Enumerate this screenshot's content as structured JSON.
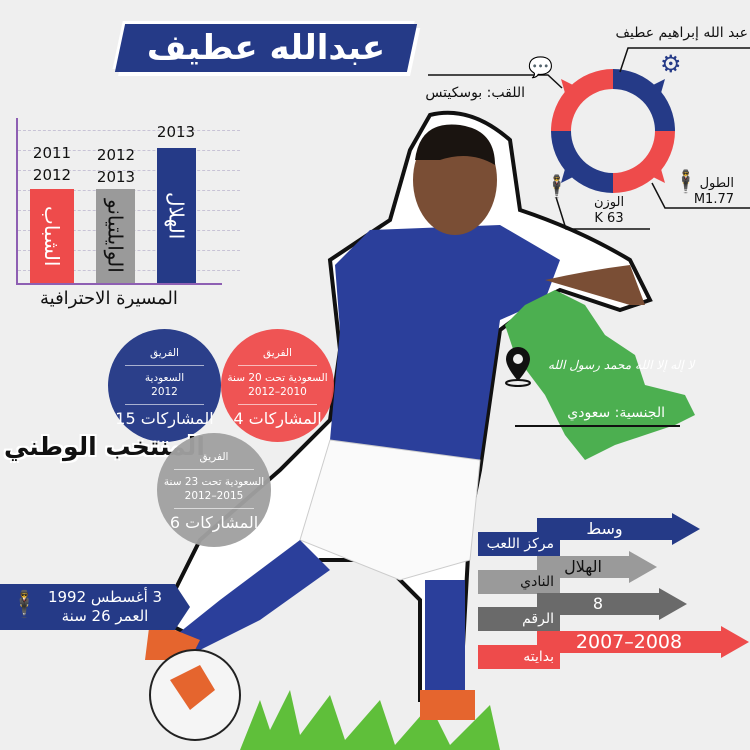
{
  "title": "عبدالله عطيف",
  "career": {
    "caption": "المسيرة الاحترافية",
    "clubs": [
      {
        "name": "الشباب",
        "years": [
          "2011",
          "2012"
        ],
        "color": "#ee4b4b"
      },
      {
        "name": "الوايلتيانو",
        "years": [
          "2012",
          "2013"
        ],
        "color": "#9a9a9a"
      },
      {
        "name": "الهلال",
        "years": [
          "2013"
        ],
        "color": "#253a87"
      }
    ]
  },
  "profile": {
    "full_name": "عبد الله إبراهيم عطيف",
    "nickname": "اللقب: بوسكيتس",
    "height_label": "الطول",
    "height_value": "M1.77",
    "weight_label": "الوزن",
    "weight_value": "K 63"
  },
  "nationality": {
    "label": "الجنسية: سعودي",
    "flag_text": "لا إله إلا الله محمد رسول الله"
  },
  "national_team": {
    "title": "المنتخب الوطني",
    "teams": [
      {
        "label": "الفريق",
        "team": "السعودية",
        "years": "2012",
        "apps": "المشاركات 15",
        "color": "#253a87"
      },
      {
        "label": "الفريق",
        "team": "السعودية تحت 20 سنة",
        "years": "2010–2012",
        "apps": "المشاركات 4",
        "color": "#ee4b4b"
      },
      {
        "label": "الفريق",
        "team": "السعودية تحت 23 سنة",
        "years": "2015–2012",
        "apps": "المشاركات 6",
        "color": "#a0a0a0"
      }
    ]
  },
  "birth": {
    "date": "3 أغسطس 1992",
    "age": "العمر 26 سنة"
  },
  "facts": [
    {
      "label": "مركز اللعب",
      "value": "وسط",
      "color": "#253a87"
    },
    {
      "label": "النادي",
      "value": "الهلال",
      "color": "#9a9a9a"
    },
    {
      "label": "الرقم",
      "value": "8",
      "color": "#6a6a6a"
    },
    {
      "label": "بدايته",
      "value": "2007–2008",
      "color": "#ee4b4b"
    }
  ],
  "colors": {
    "blue": "#253a87",
    "red": "#ee4b4b",
    "green": "#4caf50"
  }
}
